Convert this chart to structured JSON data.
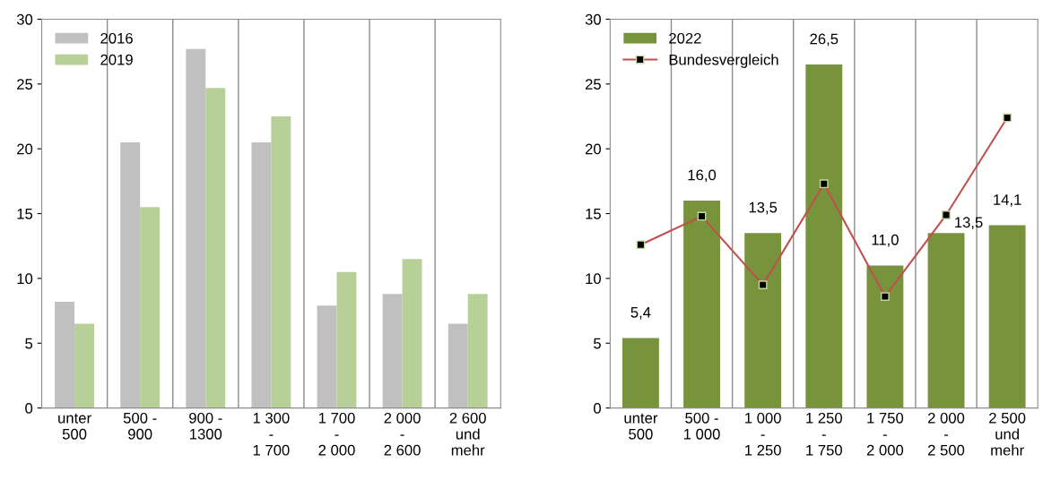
{
  "chart_data": [
    {
      "type": "bar",
      "categories": [
        "unter\n500",
        "500 -\n900",
        "900 -\n1300",
        "1 300\n-\n1 700",
        "1 700\n-\n2 000",
        "2 000\n-\n2 600",
        "2 600\nund\nmehr"
      ],
      "series": [
        {
          "name": "2016",
          "color": "#c0c0c0",
          "values": [
            8.2,
            20.5,
            27.7,
            20.5,
            7.9,
            8.8,
            6.5
          ]
        },
        {
          "name": "2019",
          "color": "#b7d098",
          "values": [
            6.5,
            15.5,
            24.7,
            22.5,
            10.5,
            11.5,
            8.8
          ]
        }
      ],
      "ylim": [
        0,
        30
      ],
      "yticks": [
        0,
        5,
        10,
        15,
        20,
        25,
        30
      ],
      "grid": "x",
      "legend": "top left"
    },
    {
      "type": "bar",
      "categories": [
        "unter\n500",
        "500 -\n1 000",
        "1 000\n-\n1 250",
        "1 250\n-\n1 750",
        "1 750\n-\n2 000",
        "2 000\n-\n2 500",
        "2 500\nund\nmehr"
      ],
      "series": [
        {
          "name": "2022",
          "color": "#77933c",
          "values": [
            5.4,
            16.0,
            13.5,
            26.5,
            11.0,
            13.5,
            14.1
          ],
          "value_labels": [
            "5,4",
            "16,0",
            "13,5",
            "26,5",
            "11,0",
            "13,5",
            "14,1"
          ]
        },
        {
          "name": "Bundesvergleich",
          "type": "line",
          "color": "#c0504d",
          "marker": "square",
          "values": [
            12.6,
            14.8,
            9.5,
            17.3,
            8.6,
            14.9,
            22.4
          ]
        }
      ],
      "ylim": [
        0,
        30
      ],
      "yticks": [
        0,
        5,
        10,
        15,
        20,
        25,
        30
      ],
      "grid": "x",
      "legend": "top left"
    }
  ]
}
